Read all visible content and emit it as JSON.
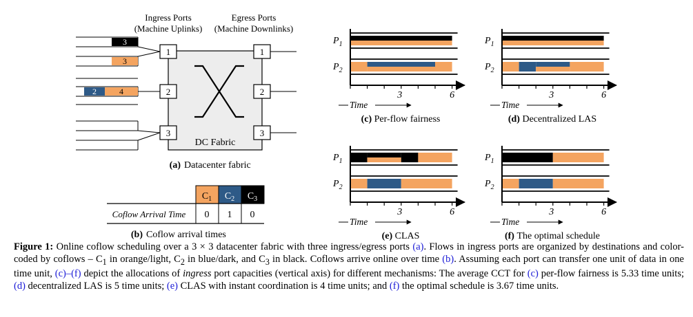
{
  "colors": {
    "orange": "#f4a460",
    "blue": "#2e5a87",
    "black": "#000000",
    "fabric": "#ededed"
  },
  "fabric_panel": {
    "ingress_title": "Ingress Ports",
    "ingress_subtitle": "(Machine Uplinks)",
    "egress_title": "Egress Ports",
    "egress_subtitle": "(Machine Downlinks)",
    "ports": [
      "1",
      "2",
      "3"
    ],
    "fabric_label": "DC Fabric",
    "queue_labels": {
      "p1_black": "3",
      "p1_orange": "3",
      "p2_blue": "2",
      "p2_orange": "4"
    },
    "caption_tag": "(a)",
    "caption_text": "Datacenter fabric"
  },
  "arrival_table": {
    "row_label": "Coflow Arrival Time",
    "coflows": [
      {
        "base": "C",
        "sub": "1",
        "color": "orange",
        "time": "0"
      },
      {
        "base": "C",
        "sub": "2",
        "color": "blue",
        "time": "1"
      },
      {
        "base": "C",
        "sub": "3",
        "color": "black",
        "time": "0"
      }
    ],
    "caption_tag": "(b)",
    "caption_text": "Coflow arrival times"
  },
  "schedules": [
    {
      "id": "c",
      "caption_tag": "(c)",
      "caption_text": "Per-flow fairness"
    },
    {
      "id": "d",
      "caption_tag": "(d)",
      "caption_text": "Decentralized LAS"
    },
    {
      "id": "e",
      "caption_tag": "(e)",
      "caption_text": "CLAS"
    },
    {
      "id": "f",
      "caption_tag": "(f)",
      "caption_text": "The optimal schedule"
    }
  ],
  "schedule_axis": {
    "p1_base": "P",
    "p1_sub": "1",
    "p2_base": "P",
    "p2_sub": "2",
    "time_label": "Time",
    "tick3": "3",
    "tick6": "6"
  },
  "caption": {
    "label": "Figure 1:",
    "seg1": " Online coflow scheduling over a 3 × 3 datacenter fabric with three ingress/egress ports ",
    "ref_a": "(a)",
    "seg2": ". Flows in ingress ports are organized by destinations and color-coded by coflows – C",
    "sub1": "1",
    "seg3": " in orange/light, C",
    "sub2": "2",
    "seg4": " in blue/dark, and C",
    "sub3": "3",
    "seg5": " in black. Coflows arrive online over time ",
    "ref_b": "(b)",
    "seg6": ". Assuming each port can transfer one unit of data in one time unit, ",
    "ref_cf": "(c)–(f)",
    "seg7": " depict the allocations of ",
    "ingress": "ingress",
    "seg8": " port capacities (vertical axis) for different mechanisms: The average CCT for ",
    "ref_c": "(c)",
    "seg9": " per-flow fairness is 5.33 time units; ",
    "ref_d": "(d)",
    "seg10": " decentralized LAS is 5 time units; ",
    "ref_e": "(e)",
    "seg11": " CLAS with instant coordination is 4 time units; and ",
    "ref_f": "(f)",
    "seg12": " the optimal schedule is 3.67 time units."
  }
}
